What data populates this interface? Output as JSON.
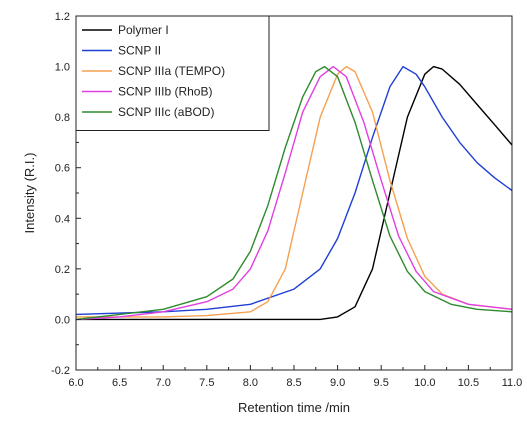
{
  "chart_data": {
    "type": "line",
    "xlabel": "Retention time /min",
    "ylabel": "Intensity (R.I.)",
    "xlim": [
      6.0,
      11.0
    ],
    "ylim": [
      -0.2,
      1.2
    ],
    "xticks": [
      "6.0",
      "6.5",
      "7.0",
      "7.5",
      "8.0",
      "8.5",
      "9.0",
      "9.5",
      "10.0",
      "10.5",
      "11.0"
    ],
    "yticks": [
      "-0.2",
      "0.0",
      "0.2",
      "0.4",
      "0.6",
      "0.8",
      "1.0",
      "1.2"
    ],
    "legend_position": "top-left",
    "grid": false,
    "series": [
      {
        "name": "Polymer I",
        "color": "#000000",
        "points": [
          [
            6.0,
            0.0
          ],
          [
            7.0,
            0.0
          ],
          [
            8.0,
            0.0
          ],
          [
            8.8,
            0.0
          ],
          [
            9.0,
            0.01
          ],
          [
            9.2,
            0.05
          ],
          [
            9.4,
            0.2
          ],
          [
            9.6,
            0.5
          ],
          [
            9.8,
            0.8
          ],
          [
            10.0,
            0.97
          ],
          [
            10.1,
            1.0
          ],
          [
            10.2,
            0.99
          ],
          [
            10.4,
            0.93
          ],
          [
            10.6,
            0.85
          ],
          [
            10.8,
            0.77
          ],
          [
            11.0,
            0.69
          ]
        ]
      },
      {
        "name": "SCNP II",
        "color": "#1f3fd6",
        "points": [
          [
            6.0,
            0.02
          ],
          [
            6.5,
            0.025
          ],
          [
            7.0,
            0.03
          ],
          [
            7.5,
            0.04
          ],
          [
            8.0,
            0.06
          ],
          [
            8.5,
            0.12
          ],
          [
            8.8,
            0.2
          ],
          [
            9.0,
            0.32
          ],
          [
            9.2,
            0.5
          ],
          [
            9.4,
            0.72
          ],
          [
            9.6,
            0.92
          ],
          [
            9.75,
            1.0
          ],
          [
            9.9,
            0.97
          ],
          [
            10.0,
            0.92
          ],
          [
            10.2,
            0.8
          ],
          [
            10.4,
            0.7
          ],
          [
            10.6,
            0.62
          ],
          [
            10.8,
            0.56
          ],
          [
            11.0,
            0.51
          ]
        ]
      },
      {
        "name": "SCNP IIIa (TEMPO)",
        "color": "#f5a050",
        "points": [
          [
            6.0,
            0.01
          ],
          [
            7.0,
            0.01
          ],
          [
            7.5,
            0.015
          ],
          [
            8.0,
            0.03
          ],
          [
            8.2,
            0.07
          ],
          [
            8.4,
            0.2
          ],
          [
            8.6,
            0.5
          ],
          [
            8.8,
            0.8
          ],
          [
            9.0,
            0.97
          ],
          [
            9.1,
            1.0
          ],
          [
            9.2,
            0.98
          ],
          [
            9.4,
            0.82
          ],
          [
            9.6,
            0.55
          ],
          [
            9.8,
            0.32
          ],
          [
            10.0,
            0.17
          ],
          [
            10.2,
            0.1
          ],
          [
            10.5,
            0.06
          ],
          [
            11.0,
            0.04
          ]
        ]
      },
      {
        "name": "SCNP IIIb (RhoB)",
        "color": "#e040e0",
        "points": [
          [
            6.0,
            0.0
          ],
          [
            6.5,
            0.01
          ],
          [
            7.0,
            0.03
          ],
          [
            7.5,
            0.07
          ],
          [
            7.8,
            0.12
          ],
          [
            8.0,
            0.2
          ],
          [
            8.2,
            0.35
          ],
          [
            8.4,
            0.58
          ],
          [
            8.6,
            0.82
          ],
          [
            8.8,
            0.96
          ],
          [
            8.95,
            1.0
          ],
          [
            9.1,
            0.96
          ],
          [
            9.3,
            0.78
          ],
          [
            9.5,
            0.55
          ],
          [
            9.7,
            0.33
          ],
          [
            9.9,
            0.19
          ],
          [
            10.1,
            0.11
          ],
          [
            10.5,
            0.06
          ],
          [
            11.0,
            0.04
          ]
        ]
      },
      {
        "name": "SCNP IIIc (aBOD)",
        "color": "#2e8b2e",
        "points": [
          [
            6.0,
            0.0
          ],
          [
            6.5,
            0.02
          ],
          [
            7.0,
            0.04
          ],
          [
            7.5,
            0.09
          ],
          [
            7.8,
            0.16
          ],
          [
            8.0,
            0.27
          ],
          [
            8.2,
            0.45
          ],
          [
            8.4,
            0.68
          ],
          [
            8.6,
            0.88
          ],
          [
            8.75,
            0.98
          ],
          [
            8.85,
            1.0
          ],
          [
            9.0,
            0.96
          ],
          [
            9.2,
            0.78
          ],
          [
            9.4,
            0.55
          ],
          [
            9.6,
            0.33
          ],
          [
            9.8,
            0.19
          ],
          [
            10.0,
            0.11
          ],
          [
            10.3,
            0.06
          ],
          [
            10.6,
            0.04
          ],
          [
            11.0,
            0.03
          ]
        ]
      }
    ]
  }
}
